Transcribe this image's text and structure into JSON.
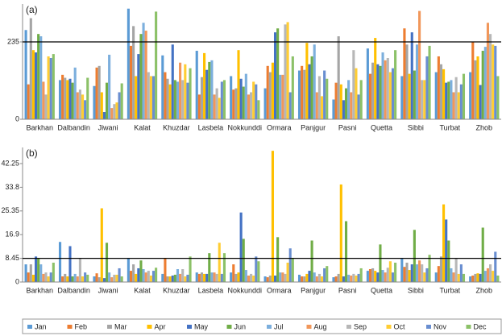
{
  "chart_data": [
    {
      "type": "bar",
      "annotation": "(a)",
      "categories": [
        "Barkhan",
        "Dalbandin",
        "Jiwani",
        "Kalat",
        "Khuzdar",
        "Lasbela",
        "Nokkunddi",
        "Ormara",
        "Panjgur",
        "Pasni",
        "Quetta",
        "Sibbi",
        "Turbat",
        "Zhob"
      ],
      "ylim": [
        0,
        350
      ],
      "yticks": [
        0,
        235
      ],
      "hline": 235,
      "series": [
        {
          "name": "Jan",
          "color": "#5b9bd5",
          "values": [
            271,
            119,
            101,
            336,
            194,
            208,
            131,
            94,
            148,
            60,
            215,
            131,
            143,
            143
          ]
        },
        {
          "name": "Feb",
          "color": "#ed7d31",
          "values": [
            106,
            135,
            157,
            223,
            143,
            75,
            90,
            162,
            162,
            111,
            138,
            276,
            191,
            235
          ]
        },
        {
          "name": "Mar",
          "color": "#a5a5a5",
          "values": [
            307,
            126,
            162,
            283,
            123,
            128,
            94,
            143,
            150,
            252,
            172,
            227,
            167,
            179
          ]
        },
        {
          "name": "Apr",
          "color": "#ffc000",
          "values": [
            210,
            119,
            82,
            131,
            106,
            201,
            210,
            172,
            232,
            106,
            247,
            138,
            152,
            191
          ]
        },
        {
          "name": "May",
          "color": "#4472c4",
          "values": [
            203,
            123,
            22,
            198,
            227,
            150,
            123,
            264,
            167,
            58,
            167,
            264,
            111,
            104
          ]
        },
        {
          "name": "Jun",
          "color": "#70ad47",
          "values": [
            259,
            111,
            111,
            259,
            119,
            174,
            99,
            276,
            191,
            94,
            162,
            148,
            114,
            208
          ]
        },
        {
          "name": "Jul",
          "color": "#7cafdd",
          "values": [
            252,
            157,
            196,
            293,
            114,
            179,
            138,
            135,
            227,
            119,
            203,
            227,
            119,
            220
          ]
        },
        {
          "name": "Aug",
          "color": "#f1975a",
          "values": [
            114,
            82,
            34,
            269,
            172,
            75,
            75,
            135,
            82,
            82,
            179,
            329,
            82,
            293
          ]
        },
        {
          "name": "Sep",
          "color": "#b7b7b7",
          "values": [
            75,
            90,
            46,
            143,
            119,
            94,
            82,
            288,
            131,
            210,
            186,
            119,
            128,
            259
          ]
        },
        {
          "name": "Oct",
          "color": "#ffcd33",
          "values": [
            191,
            75,
            51,
            131,
            167,
            65,
            114,
            295,
            70,
            155,
            143,
            119,
            82,
            227
          ]
        },
        {
          "name": "Nov",
          "color": "#698ed0",
          "values": [
            186,
            58,
            82,
            131,
            111,
            114,
            106,
            82,
            148,
            75,
            155,
            191,
            106,
            223
          ]
        },
        {
          "name": "Dec",
          "color": "#8cc168",
          "values": [
            198,
            126,
            109,
            327,
            155,
            119,
            58,
            191,
            123,
            119,
            210,
            223,
            138,
            131
          ]
        }
      ]
    },
    {
      "type": "bar",
      "annotation": "(b)",
      "categories": [
        "Barkhan",
        "Dalbandin",
        "Jiwani",
        "Kalat",
        "Khuzdar",
        "Lasbela",
        "Nokkunddi",
        "Ormara",
        "Panjgur",
        "Pasni",
        "Quetta",
        "Sibbi",
        "Turbat",
        "Zhob"
      ],
      "ylim": [
        0,
        48
      ],
      "yticks": [
        0,
        8.45,
        16.9,
        25.35,
        33.8,
        42.25
      ],
      "hline": 8.45,
      "series": [
        {
          "name": "Jan",
          "color": "#5b9bd5",
          "values": [
            6.3,
            14.3,
            2.0,
            8.6,
            2.9,
            3.4,
            3.4,
            2.0,
            2.6,
            1.7,
            4.0,
            8.6,
            3.4,
            2.0
          ]
        },
        {
          "name": "Feb",
          "color": "#ed7d31",
          "values": [
            3.4,
            2.0,
            3.1,
            4.0,
            8.6,
            2.9,
            6.3,
            1.7,
            2.0,
            2.0,
            4.6,
            5.4,
            5.7,
            2.3
          ]
        },
        {
          "name": "Mar",
          "color": "#a5a5a5",
          "values": [
            6.3,
            2.9,
            1.7,
            6.3,
            2.0,
            3.4,
            2.9,
            2.3,
            2.0,
            2.9,
            4.9,
            6.9,
            9.1,
            2.9
          ]
        },
        {
          "name": "Apr",
          "color": "#ffc000",
          "values": [
            2.6,
            2.0,
            26.3,
            2.9,
            2.0,
            2.9,
            3.4,
            46.8,
            2.9,
            34.8,
            4.0,
            4.3,
            27.7,
            3.1
          ]
        },
        {
          "name": "May",
          "color": "#4472c4",
          "values": [
            9.1,
            12.8,
            1.4,
            4.9,
            2.3,
            2.9,
            24.8,
            2.3,
            4.0,
            2.0,
            3.4,
            6.3,
            22.3,
            2.9
          ]
        },
        {
          "name": "Jun",
          "color": "#70ad47",
          "values": [
            8.3,
            2.0,
            14.0,
            7.7,
            2.6,
            10.3,
            15.4,
            16.0,
            14.8,
            21.7,
            13.4,
            18.6,
            14.8,
            19.4
          ]
        },
        {
          "name": "Jul",
          "color": "#7cafdd",
          "values": [
            6.3,
            2.9,
            3.4,
            4.6,
            4.6,
            3.4,
            4.3,
            3.4,
            3.4,
            2.6,
            4.3,
            6.3,
            4.9,
            4.0
          ]
        },
        {
          "name": "Aug",
          "color": "#f1975a",
          "values": [
            2.9,
            2.0,
            1.7,
            3.4,
            2.9,
            3.4,
            2.3,
            3.4,
            2.0,
            2.3,
            3.4,
            7.7,
            3.4,
            4.9
          ]
        },
        {
          "name": "Sep",
          "color": "#b7b7b7",
          "values": [
            3.4,
            8.6,
            2.6,
            4.0,
            4.6,
            2.9,
            2.9,
            2.9,
            2.9,
            2.9,
            5.1,
            6.3,
            8.6,
            6.3
          ]
        },
        {
          "name": "Oct",
          "color": "#ffcd33",
          "values": [
            2.0,
            2.0,
            2.6,
            2.3,
            2.0,
            14.0,
            2.3,
            6.9,
            2.0,
            2.3,
            7.4,
            3.4,
            2.9,
            4.0
          ]
        },
        {
          "name": "Nov",
          "color": "#698ed0",
          "values": [
            3.4,
            3.4,
            4.9,
            4.0,
            2.6,
            2.9,
            9.1,
            12.0,
            4.9,
            2.9,
            3.4,
            4.9,
            6.3,
            10.8
          ]
        },
        {
          "name": "Dec",
          "color": "#8cc168",
          "values": [
            6.9,
            2.6,
            2.0,
            5.1,
            9.1,
            10.3,
            7.4,
            8.6,
            5.7,
            4.9,
            6.9,
            9.7,
            2.9,
            2.3
          ]
        }
      ]
    }
  ]
}
